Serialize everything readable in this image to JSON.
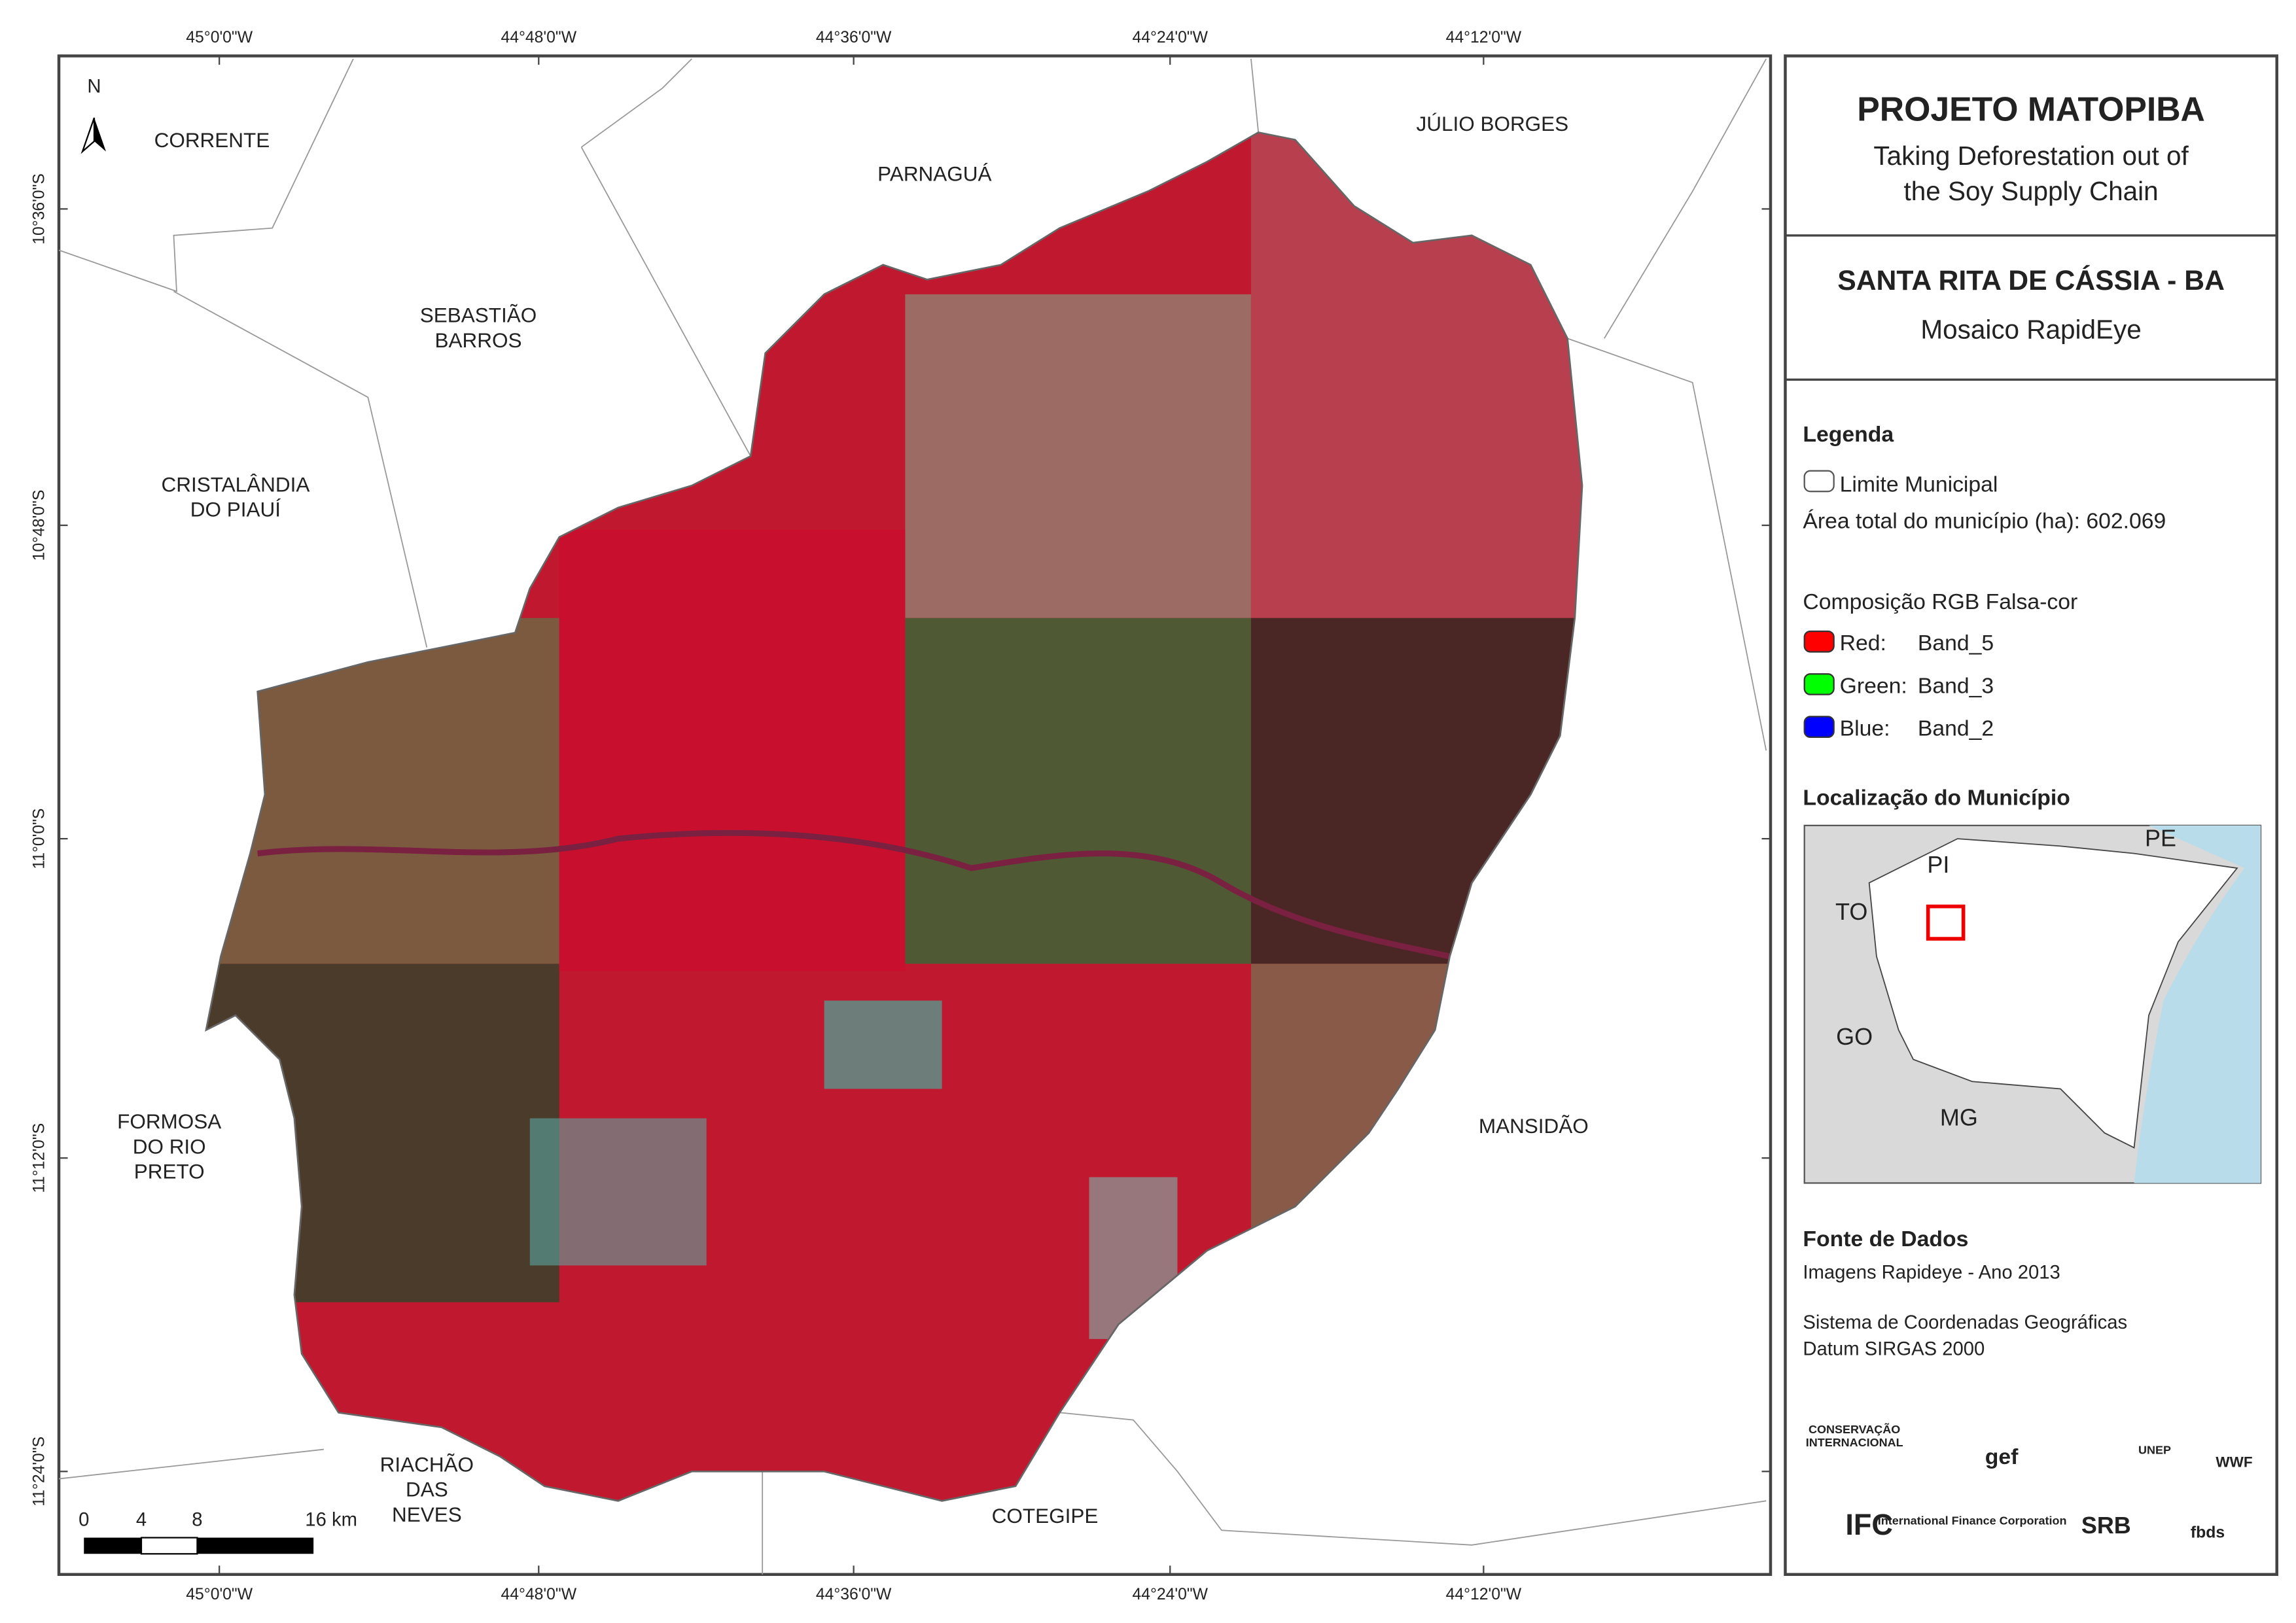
{
  "header": {
    "title": "PROJETO MATOPIBA",
    "subtitle": [
      "Taking Deforestation out of",
      "the Soy Supply Chain"
    ]
  },
  "map_title": {
    "name": "SANTA RITA DE CÁSSIA - BA",
    "product": "Mosaico RapidEye"
  },
  "legend": {
    "title": "Legenda",
    "items": [
      "Limite Municipal",
      "Área total do município (ha): 602.069"
    ],
    "rgb_title": "Composição RGB Falsa-cor",
    "rgb": [
      {
        "channel": "Red:",
        "band": "Band_5",
        "color": "#ff0000"
      },
      {
        "channel": "Green:",
        "band": "Band_3",
        "color": "#00ff00"
      },
      {
        "channel": "Blue:",
        "band": "Band_2",
        "color": "#0000ff"
      }
    ]
  },
  "locator": {
    "title": "Localização do Município",
    "labels": [
      "PI",
      "PE",
      "TO",
      "GO",
      "MG"
    ]
  },
  "source": {
    "title": "Fonte de Dados",
    "lines": [
      "Imagens Rapideye - Ano 2013",
      "Sistema de Coordenadas Geográficas",
      "Datum SIRGAS 2000"
    ]
  },
  "map": {
    "north": "N",
    "places": [
      [
        "CORRENTE"
      ],
      [
        "PARNAGUÁ"
      ],
      [
        "JÚLIO BORGES"
      ],
      [
        "SEBASTIÃO",
        "BARROS"
      ],
      [
        "CRISTALÂNDIA",
        "DO PIAUÍ"
      ],
      [
        "FORMOSA",
        "DO RIO",
        "PRETO"
      ],
      [
        "MANSIDÃO"
      ],
      [
        "RIACHÃO",
        "DAS",
        "NEVES"
      ],
      [
        "COTEGIPE"
      ]
    ],
    "lon_ticks": [
      "45°0'0\"W",
      "44°48'0\"W",
      "44°36'0\"W",
      "44°24'0\"W",
      "44°12'0\"W"
    ],
    "lat_ticks": [
      "10°36'0\"S",
      "10°48'0\"S",
      "11°0'0\"S",
      "11°12'0\"S",
      "11°24'0\"S"
    ],
    "scale": [
      "0",
      "4",
      "8",
      "16 km"
    ]
  },
  "logos": [
    "CONSERVAÇÃO",
    "INTERNACIONAL",
    "gef",
    "UNEP",
    "WWF",
    "IFC",
    "International Finance Corporation",
    "SRB",
    "fbds"
  ]
}
